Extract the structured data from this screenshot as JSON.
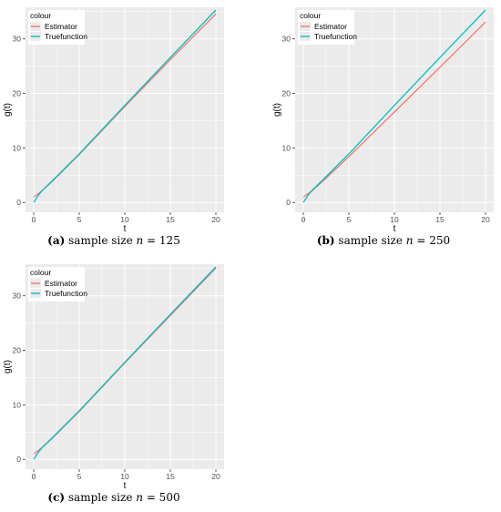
{
  "chart_data": [
    {
      "type": "line",
      "panel": "a",
      "caption": {
        "tag": "(a)",
        "text_before": " sample size ",
        "var": "n",
        "text_after": " = 125"
      },
      "xlabel": "t",
      "ylabel": "g(t)",
      "xlim": [
        -0.9,
        20.9
      ],
      "ylim": [
        -1.8,
        35.8
      ],
      "xticks": [
        0,
        5,
        10,
        15,
        20
      ],
      "yticks": [
        0,
        10,
        20,
        30
      ],
      "grid": true,
      "legend": {
        "title": "colour",
        "position": "top-left"
      },
      "series": [
        {
          "name": "Estimator",
          "color": "#F8766D",
          "x": [
            0,
            0.5,
            1,
            2,
            5,
            10,
            15,
            20
          ],
          "y": [
            1.0,
            1.6,
            2.3,
            3.8,
            8.8,
            17.6,
            26.2,
            34.6
          ]
        },
        {
          "name": "Truefunction",
          "color": "#00BFC4",
          "x": [
            0,
            0.5,
            1,
            2,
            5,
            10,
            15,
            20
          ],
          "y": [
            0.0,
            1.3,
            2.3,
            3.9,
            8.9,
            17.8,
            26.6,
            35.3
          ]
        }
      ]
    },
    {
      "type": "line",
      "panel": "b",
      "caption": {
        "tag": "(b)",
        "text_before": " sample size ",
        "var": "n",
        "text_after": " = 250"
      },
      "xlabel": "t",
      "ylabel": "g(t)",
      "xlim": [
        -0.9,
        20.9
      ],
      "ylim": [
        -1.8,
        35.8
      ],
      "xticks": [
        0,
        5,
        10,
        15,
        20
      ],
      "yticks": [
        0,
        10,
        20,
        30
      ],
      "grid": true,
      "legend": {
        "title": "colour",
        "position": "top-left"
      },
      "series": [
        {
          "name": "Estimator",
          "color": "#F8766D",
          "x": [
            0,
            0.5,
            1,
            2,
            5,
            10,
            15,
            20
          ],
          "y": [
            1.0,
            1.6,
            2.2,
            3.7,
            8.4,
            16.6,
            24.8,
            33.1
          ]
        },
        {
          "name": "Truefunction",
          "color": "#00BFC4",
          "x": [
            0,
            0.5,
            1,
            2,
            5,
            10,
            15,
            20
          ],
          "y": [
            0.0,
            1.3,
            2.3,
            3.9,
            8.9,
            17.8,
            26.6,
            35.3
          ]
        }
      ]
    },
    {
      "type": "line",
      "panel": "c",
      "caption": {
        "tag": "(c)",
        "text_before": " sample size ",
        "var": "n",
        "text_after": " = 500"
      },
      "xlabel": "t",
      "ylabel": "g(t)",
      "xlim": [
        -0.9,
        20.9
      ],
      "ylim": [
        -1.8,
        35.8
      ],
      "xticks": [
        0,
        5,
        10,
        15,
        20
      ],
      "yticks": [
        0,
        10,
        20,
        30
      ],
      "grid": true,
      "legend": {
        "title": "colour",
        "position": "top-left"
      },
      "series": [
        {
          "name": "Estimator",
          "color": "#F8766D",
          "x": [
            0,
            0.5,
            1,
            2,
            5,
            10,
            15,
            20
          ],
          "y": [
            1.0,
            1.6,
            2.3,
            3.8,
            8.8,
            17.7,
            26.4,
            35.1
          ]
        },
        {
          "name": "Truefunction",
          "color": "#00BFC4",
          "x": [
            0,
            0.5,
            1,
            2,
            5,
            10,
            15,
            20
          ],
          "y": [
            0.0,
            1.3,
            2.3,
            3.9,
            8.9,
            17.8,
            26.6,
            35.3
          ]
        }
      ]
    }
  ]
}
